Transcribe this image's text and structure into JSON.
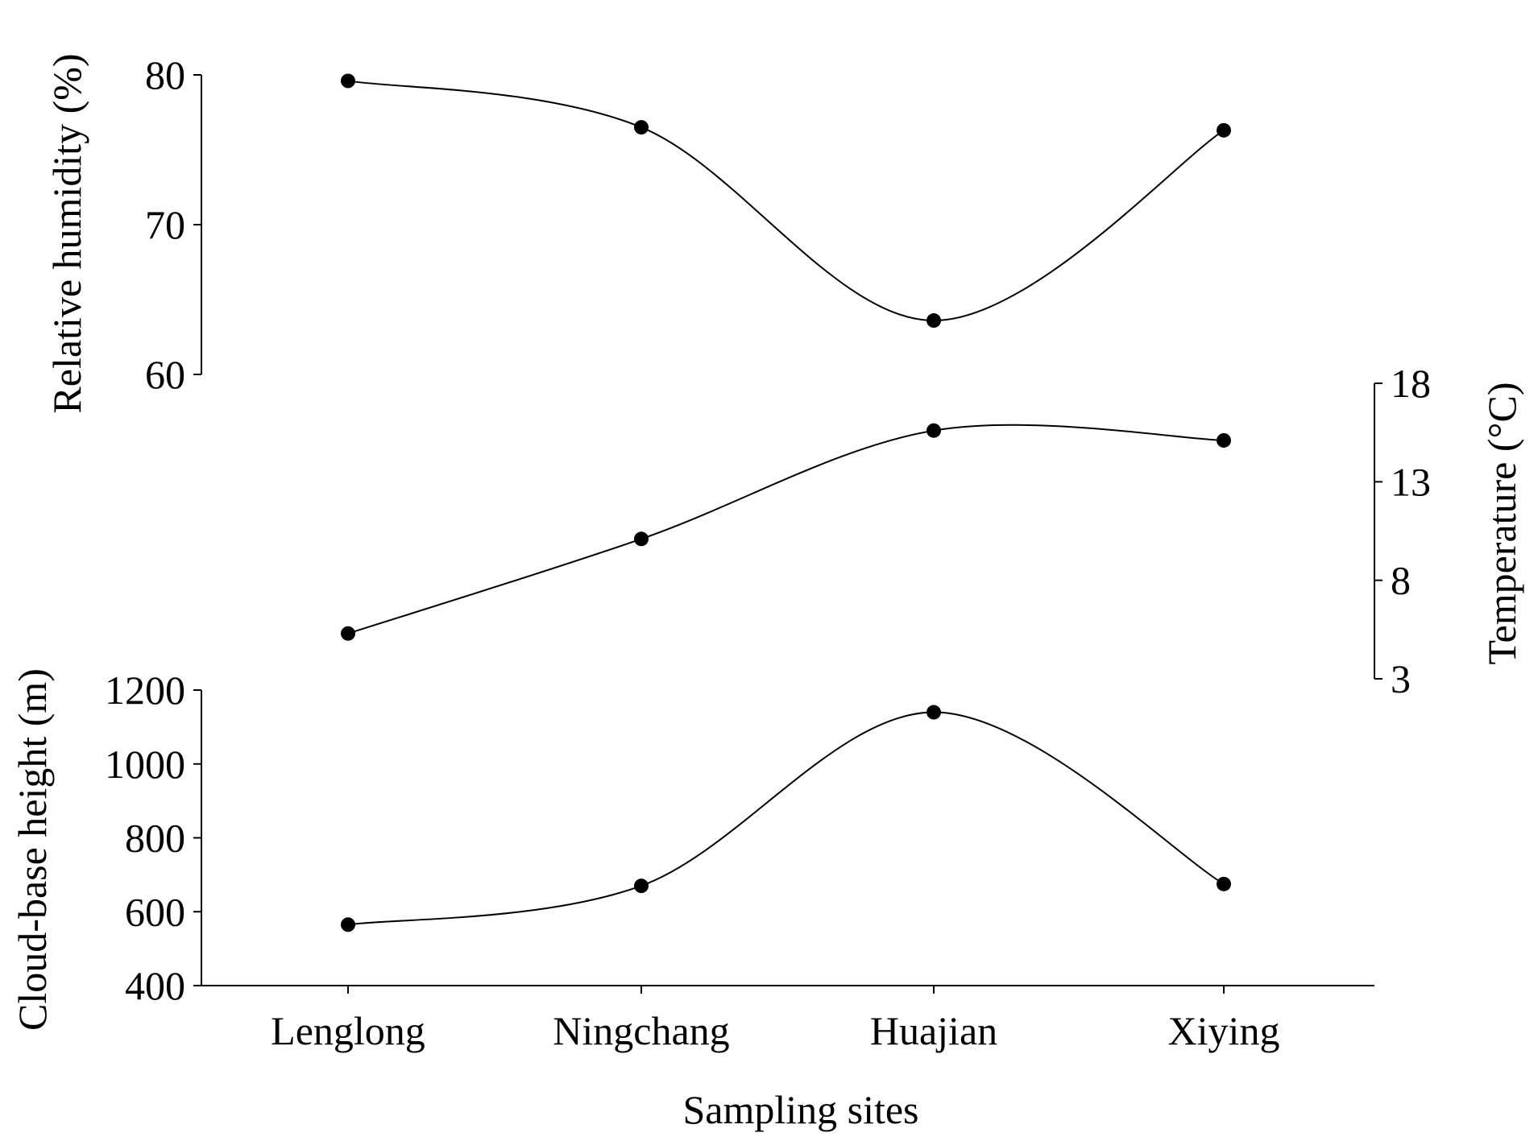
{
  "chart_data": [
    {
      "type": "line",
      "categories": [
        "Lenglong",
        "Ningchang",
        "Huajian",
        "Xiying"
      ],
      "series": [
        {
          "values": [
            79.6,
            76.5,
            63.6,
            76.3
          ]
        }
      ],
      "ylabel": "Relative humidity (%)",
      "ylim": [
        60,
        80
      ],
      "yticks": [
        "60",
        "70",
        "80"
      ],
      "y_axis_side": "left",
      "grid": false,
      "smooth": true
    },
    {
      "type": "line",
      "categories": [
        "Lenglong",
        "Ningchang",
        "Huajian",
        "Xiying"
      ],
      "series": [
        {
          "values": [
            5.3,
            10.1,
            15.6,
            15.1
          ]
        }
      ],
      "ylabel": "Temperature (°C)",
      "ylim": [
        3,
        18
      ],
      "yticks": [
        "3",
        "8",
        "13",
        "18"
      ],
      "y_axis_side": "right",
      "grid": false,
      "smooth": true
    },
    {
      "type": "line",
      "categories": [
        "Lenglong",
        "Ningchang",
        "Huajian",
        "Xiying"
      ],
      "series": [
        {
          "values": [
            565,
            670,
            1140,
            675
          ]
        }
      ],
      "xlabel": "Sampling sites",
      "ylabel": "Cloud-base height (m)",
      "ylim": [
        400,
        1200
      ],
      "yticks": [
        "400",
        "600",
        "800",
        "1000",
        "1200"
      ],
      "y_axis_side": "left",
      "grid": false,
      "smooth": true
    }
  ]
}
